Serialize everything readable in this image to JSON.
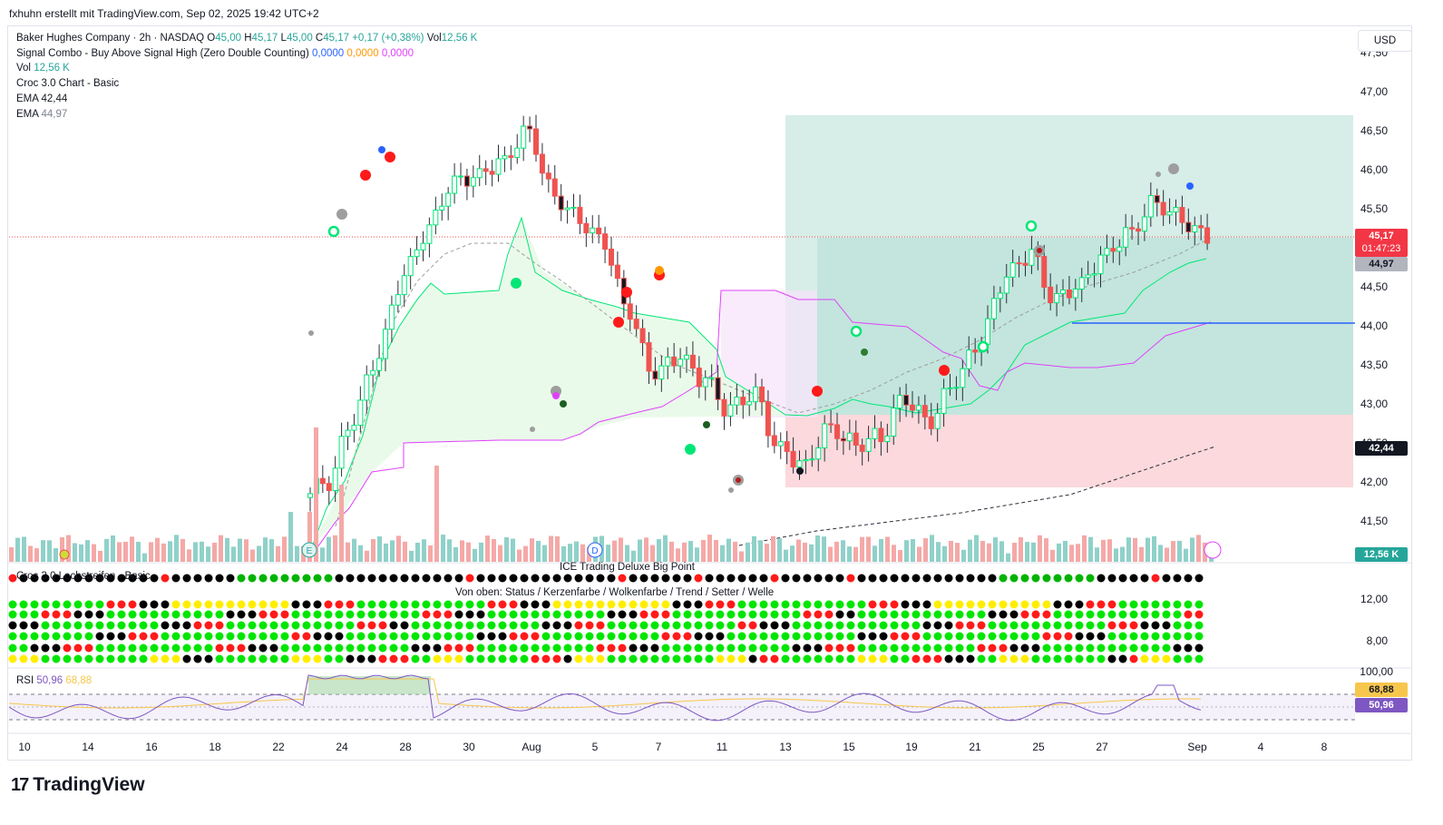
{
  "header": {
    "attribution": "fxhuhn erstellt mit TradingView.com, Sep 02, 2025 19:42 UTC+2"
  },
  "legend": {
    "symbol_line": "Baker Hughes Company · 2h · NASDAQ",
    "o_label": "O",
    "o_val": "45,00",
    "h_label": "H",
    "h_val": "45,17",
    "l_label": "L",
    "l_val": "45,00",
    "c_label": "C",
    "c_val": "45,17",
    "change": "+0,17 (+0,38%)",
    "vol_label": "Vol",
    "vol_val": "12,56 K",
    "signal_name": "Signal Combo - Buy Above Signal High (Zero Double Counting)",
    "signal_v1": "0,0000",
    "signal_v2": "0,0000",
    "signal_v3": "0,0000",
    "vol2_label": "Vol",
    "vol2_val": "12,56 K",
    "croc_name": "Croc 3.0 Chart - Basic",
    "ema1_label": "EMA",
    "ema1_val": "42,44",
    "ema2_label": "EMA",
    "ema2_val": "44,97"
  },
  "currency_button": "USD",
  "price_tags": {
    "last": "45,17",
    "countdown": "01:47:23",
    "ema_fast": "44,97",
    "ema_slow": "42,44",
    "volume": "12,56 K",
    "rsi_ma": "68,88",
    "rsi": "50,96"
  },
  "panes": {
    "croc_title": "Croc 3.0 Lochstreifen - Basic",
    "ice_title": "ICE Trading Deluxe Big Point",
    "ice_subtitle": "Von oben: Status / Kerzenfarbe / Wolkenfarbe / Trend / Setter / Welle",
    "rsi_label": "RSI",
    "rsi_val": "50,96",
    "rsi_ma_val": "68,88"
  },
  "colors": {
    "up": "#26a69a",
    "down": "#ef5350",
    "bull_body": "#00e676",
    "cloud_line": "#00e676",
    "cloud_fill": "#e8f9e8",
    "magenta": "#e040fb",
    "target_zone": "#cde9e2",
    "stop_zone": "#fbd9dc",
    "rsi_line": "#7e57c2",
    "rsi_ma": "#f7c64c"
  },
  "branding": "TradingView",
  "chart_data": {
    "type": "candlestick",
    "title": "Baker Hughes Company · 2h · NASDAQ",
    "y_ticks": [
      "47,50",
      "47,00",
      "46,50",
      "46,00",
      "45,50",
      "45,00",
      "44,50",
      "44,00",
      "43,50",
      "43,00",
      "42,50",
      "42,00",
      "41,50"
    ],
    "ylim": [
      41.5,
      47.0
    ],
    "x_ticks": [
      "10",
      "14",
      "16",
      "18",
      "22",
      "24",
      "28",
      "30",
      "Aug",
      "5",
      "7",
      "11",
      "13",
      "15",
      "19",
      "21",
      "25",
      "27",
      "Sep",
      "4",
      "8"
    ],
    "indicator_ticks": [
      "12,00",
      "8,00"
    ],
    "rsi_ticks": [
      "100,00"
    ],
    "last_price": 45.17,
    "ema_fast": 44.97,
    "ema_slow": 42.44,
    "horizontal_line": 44.04,
    "target_zone": [
      42.9,
      46.7
    ],
    "stop_zone": [
      41.95,
      42.9
    ],
    "rsi": 50.96,
    "rsi_ma": 68.88,
    "series": [
      {
        "name": "Close",
        "values": [
          42.0,
          42.8,
          43.6,
          44.6,
          45.2,
          45.8,
          45.9,
          46.1,
          46.5,
          45.7,
          45.4,
          45.1,
          44.2,
          43.4,
          43.6,
          43.3,
          42.9,
          43.1,
          42.4,
          42.2,
          42.7,
          42.5,
          42.6,
          43.1,
          42.8,
          43.3,
          43.8,
          44.6,
          44.9,
          44.3,
          44.5,
          44.9,
          45.2,
          45.6,
          45.4,
          45.17
        ]
      }
    ]
  }
}
